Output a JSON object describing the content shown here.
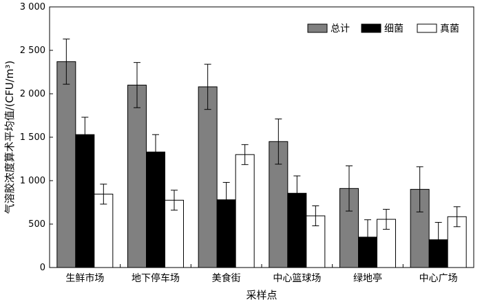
{
  "chart_data": {
    "type": "bar",
    "title": "",
    "xlabel": "采样点",
    "ylabel": "气溶胶浓度算术平均值/(CFU/m³)",
    "ylim": [
      0,
      3000
    ],
    "yticks": [
      0,
      500,
      1000,
      1500,
      2000,
      2500,
      3000
    ],
    "ytick_labels": [
      "0",
      "500",
      "1 000",
      "1 500",
      "2 000",
      "2 500",
      "3 000"
    ],
    "categories": [
      "生鲜市场",
      "地下停车场",
      "美食街",
      "中心篮球场",
      "绿地亭",
      "中心广场"
    ],
    "series": [
      {
        "name": "总计",
        "color": "#808080",
        "values": [
          2370,
          2100,
          2080,
          1450,
          910,
          900
        ],
        "errors": [
          260,
          260,
          260,
          260,
          260,
          260
        ]
      },
      {
        "name": "细菌",
        "color": "#000000",
        "values": [
          1530,
          1330,
          780,
          855,
          350,
          320
        ],
        "errors": [
          200,
          200,
          200,
          200,
          200,
          200
        ]
      },
      {
        "name": "真菌",
        "color": "#ffffff",
        "values": [
          845,
          775,
          1300,
          595,
          555,
          585
        ],
        "errors": [
          115,
          115,
          115,
          115,
          115,
          115
        ]
      }
    ],
    "legend_position": "top-right",
    "grid": false
  }
}
